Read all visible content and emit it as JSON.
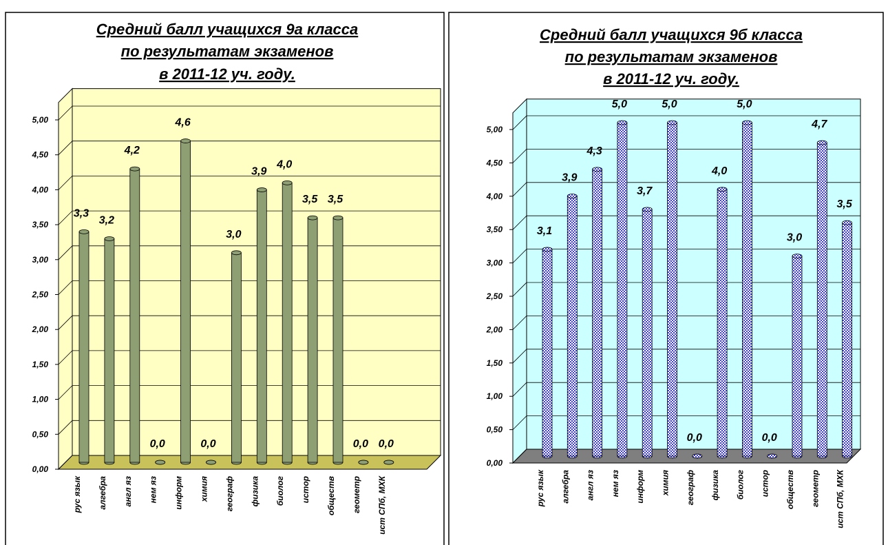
{
  "chart_data": [
    {
      "type": "bar3d",
      "title_lines": [
        "Средний балл учащихся 9а класса",
        "по результатам экзаменов ",
        "в 2011-12 уч. году."
      ],
      "categories": [
        "рус язык",
        "алгебра",
        "англ яз",
        "нем яз",
        "информ",
        "химия",
        "географ",
        "физика",
        "биолог",
        "истор",
        "обществ",
        "геометр",
        "ист СПб, МХК"
      ],
      "values": [
        3.3,
        3.2,
        4.2,
        0,
        4.6,
        0,
        3.0,
        3.9,
        4.0,
        3.5,
        3.5,
        0,
        0
      ],
      "value_labels": [
        "3,3",
        "3,2",
        "4,2",
        "0,0",
        "4,6",
        "0,0",
        "3,0",
        "3,9",
        "4,0",
        "3,5",
        "3,5",
        "0,0",
        "0,0"
      ],
      "ylim": [
        0,
        5.25
      ],
      "yticks": [
        {
          "value": 0,
          "label": "0,00"
        },
        {
          "value": 0.5,
          "label": "0,50"
        },
        {
          "value": 1,
          "label": "1,00"
        },
        {
          "value": 1.5,
          "label": "1,50"
        },
        {
          "value": 2,
          "label": "2,00"
        },
        {
          "value": 2.5,
          "label": "2,50"
        },
        {
          "value": 3,
          "label": "3,00"
        },
        {
          "value": 3.5,
          "label": "3,50"
        },
        {
          "value": 4,
          "label": "4,00"
        },
        {
          "value": 4.5,
          "label": "4,50"
        },
        {
          "value": 5,
          "label": "5,00"
        }
      ],
      "color": "#8f9f74",
      "wall_color": "#ffffc4",
      "floor_color": "#c9c25a",
      "grid": true
    },
    {
      "type": "bar3d",
      "title_lines": [
        "Средний балл учащихся 9б класса",
        "по результатам экзаменов ",
        "в 2011-12 уч. году."
      ],
      "categories": [
        "рус язык",
        "алгебра",
        "англ яз",
        "нем яз",
        "информ",
        "химия",
        "географ",
        "физика",
        "биолог",
        "истор",
        "обществ",
        "геометр",
        "ист СПб, МХК"
      ],
      "values": [
        3.1,
        3.9,
        4.3,
        5.0,
        3.7,
        5.0,
        0,
        4.0,
        5.0,
        0,
        3.0,
        4.7,
        3.5
      ],
      "value_labels": [
        "3,1",
        "3,9",
        "4,3",
        "5,0",
        "3,7",
        "5,0",
        "0,0",
        "4,0",
        "5,0",
        "0,0",
        "3,0",
        "4,7",
        "3,5"
      ],
      "ylim": [
        0,
        5.25
      ],
      "yticks": [
        {
          "value": 0,
          "label": "0,00"
        },
        {
          "value": 0.5,
          "label": "0,50"
        },
        {
          "value": 1,
          "label": "1,00"
        },
        {
          "value": 1.5,
          "label": "1,50"
        },
        {
          "value": 2,
          "label": "2,00"
        },
        {
          "value": 2.5,
          "label": "2,50"
        },
        {
          "value": 3,
          "label": "3,00"
        },
        {
          "value": 3.5,
          "label": "3,50"
        },
        {
          "value": 4,
          "label": "4,00"
        },
        {
          "value": 4.5,
          "label": "4,50"
        },
        {
          "value": 5,
          "label": "5,00"
        }
      ],
      "color": "#3a3ae0",
      "wall_color": "#ccffff",
      "floor_color": "#7f7f7f",
      "grid": true
    }
  ]
}
